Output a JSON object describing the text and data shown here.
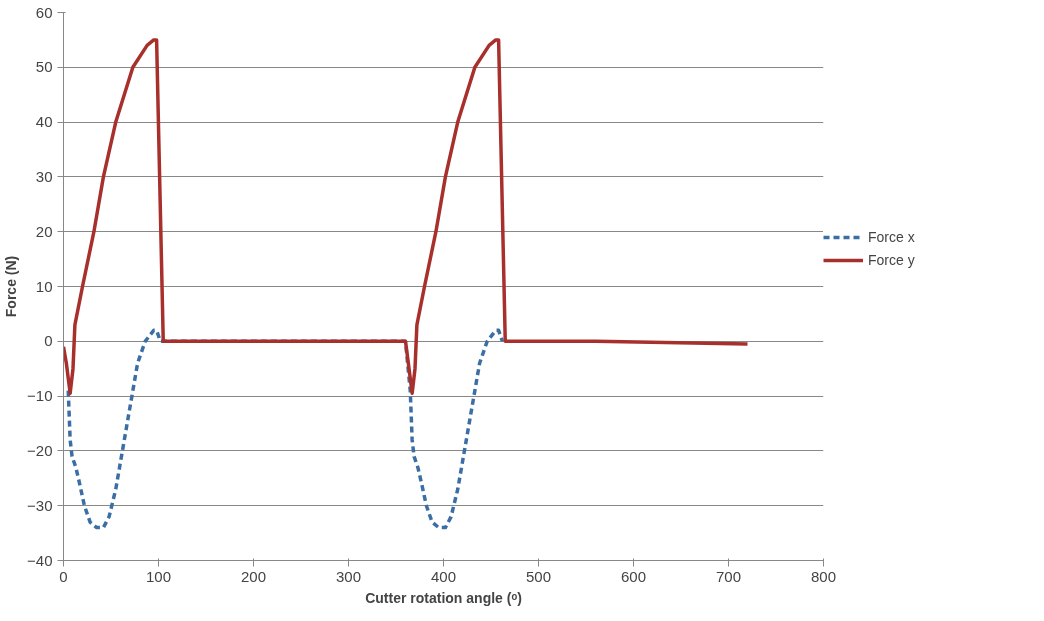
{
  "chart_data": {
    "type": "line",
    "xlabel": "Cutter rotation angle (ᵒ)",
    "ylabel": "Force (N)",
    "xlim": [
      0,
      800
    ],
    "xticks": [
      0,
      100,
      200,
      300,
      400,
      500,
      600,
      700,
      800
    ],
    "ylim": [
      -40,
      60
    ],
    "yticks": [
      -40,
      -30,
      -20,
      -10,
      0,
      10,
      20,
      30,
      40,
      50,
      60
    ],
    "grid": "y",
    "legend": "right",
    "series": [
      {
        "name": "Force x",
        "color": "#3b6ea5",
        "line_style": "dashed",
        "x": [
          5,
          7,
          9,
          13,
          17,
          22,
          28,
          35,
          42,
          48,
          55,
          62,
          70,
          78,
          86,
          95,
          98,
          102,
          200,
          300,
          360,
          365,
          367,
          369,
          373,
          377,
          382,
          388,
          395,
          402,
          408,
          415,
          422,
          430,
          438,
          446,
          455,
          458,
          462
        ],
        "values": [
          -9,
          -18,
          -21,
          -23,
          -26,
          -30,
          -33,
          -34,
          -34,
          -32,
          -27,
          -20,
          -12,
          -4,
          0,
          2,
          2,
          0,
          0,
          0,
          0,
          -9,
          -18,
          -21,
          -23,
          -26,
          -30,
          -33,
          -34,
          -34,
          -32,
          -27,
          -20,
          -12,
          -4,
          0,
          2,
          2,
          0
        ]
      },
      {
        "name": "Force y",
        "color": "#a8302c",
        "line_style": "solid",
        "x": [
          0,
          3,
          7,
          10,
          12,
          20,
          32,
          42,
          55,
          73,
          88,
          95,
          98,
          105,
          200,
          300,
          355,
          360,
          363,
          367,
          370,
          372,
          380,
          392,
          402,
          415,
          433,
          448,
          455,
          458,
          465,
          560,
          720
        ],
        "values": [
          -1,
          -4,
          -9.5,
          -5,
          3,
          10,
          20,
          30,
          40,
          50,
          54,
          55,
          55,
          0,
          0,
          0,
          0,
          0,
          -4,
          -9.5,
          -5,
          3,
          10,
          20,
          30,
          40,
          50,
          54,
          55,
          55,
          0,
          0,
          -0.5
        ]
      }
    ]
  }
}
